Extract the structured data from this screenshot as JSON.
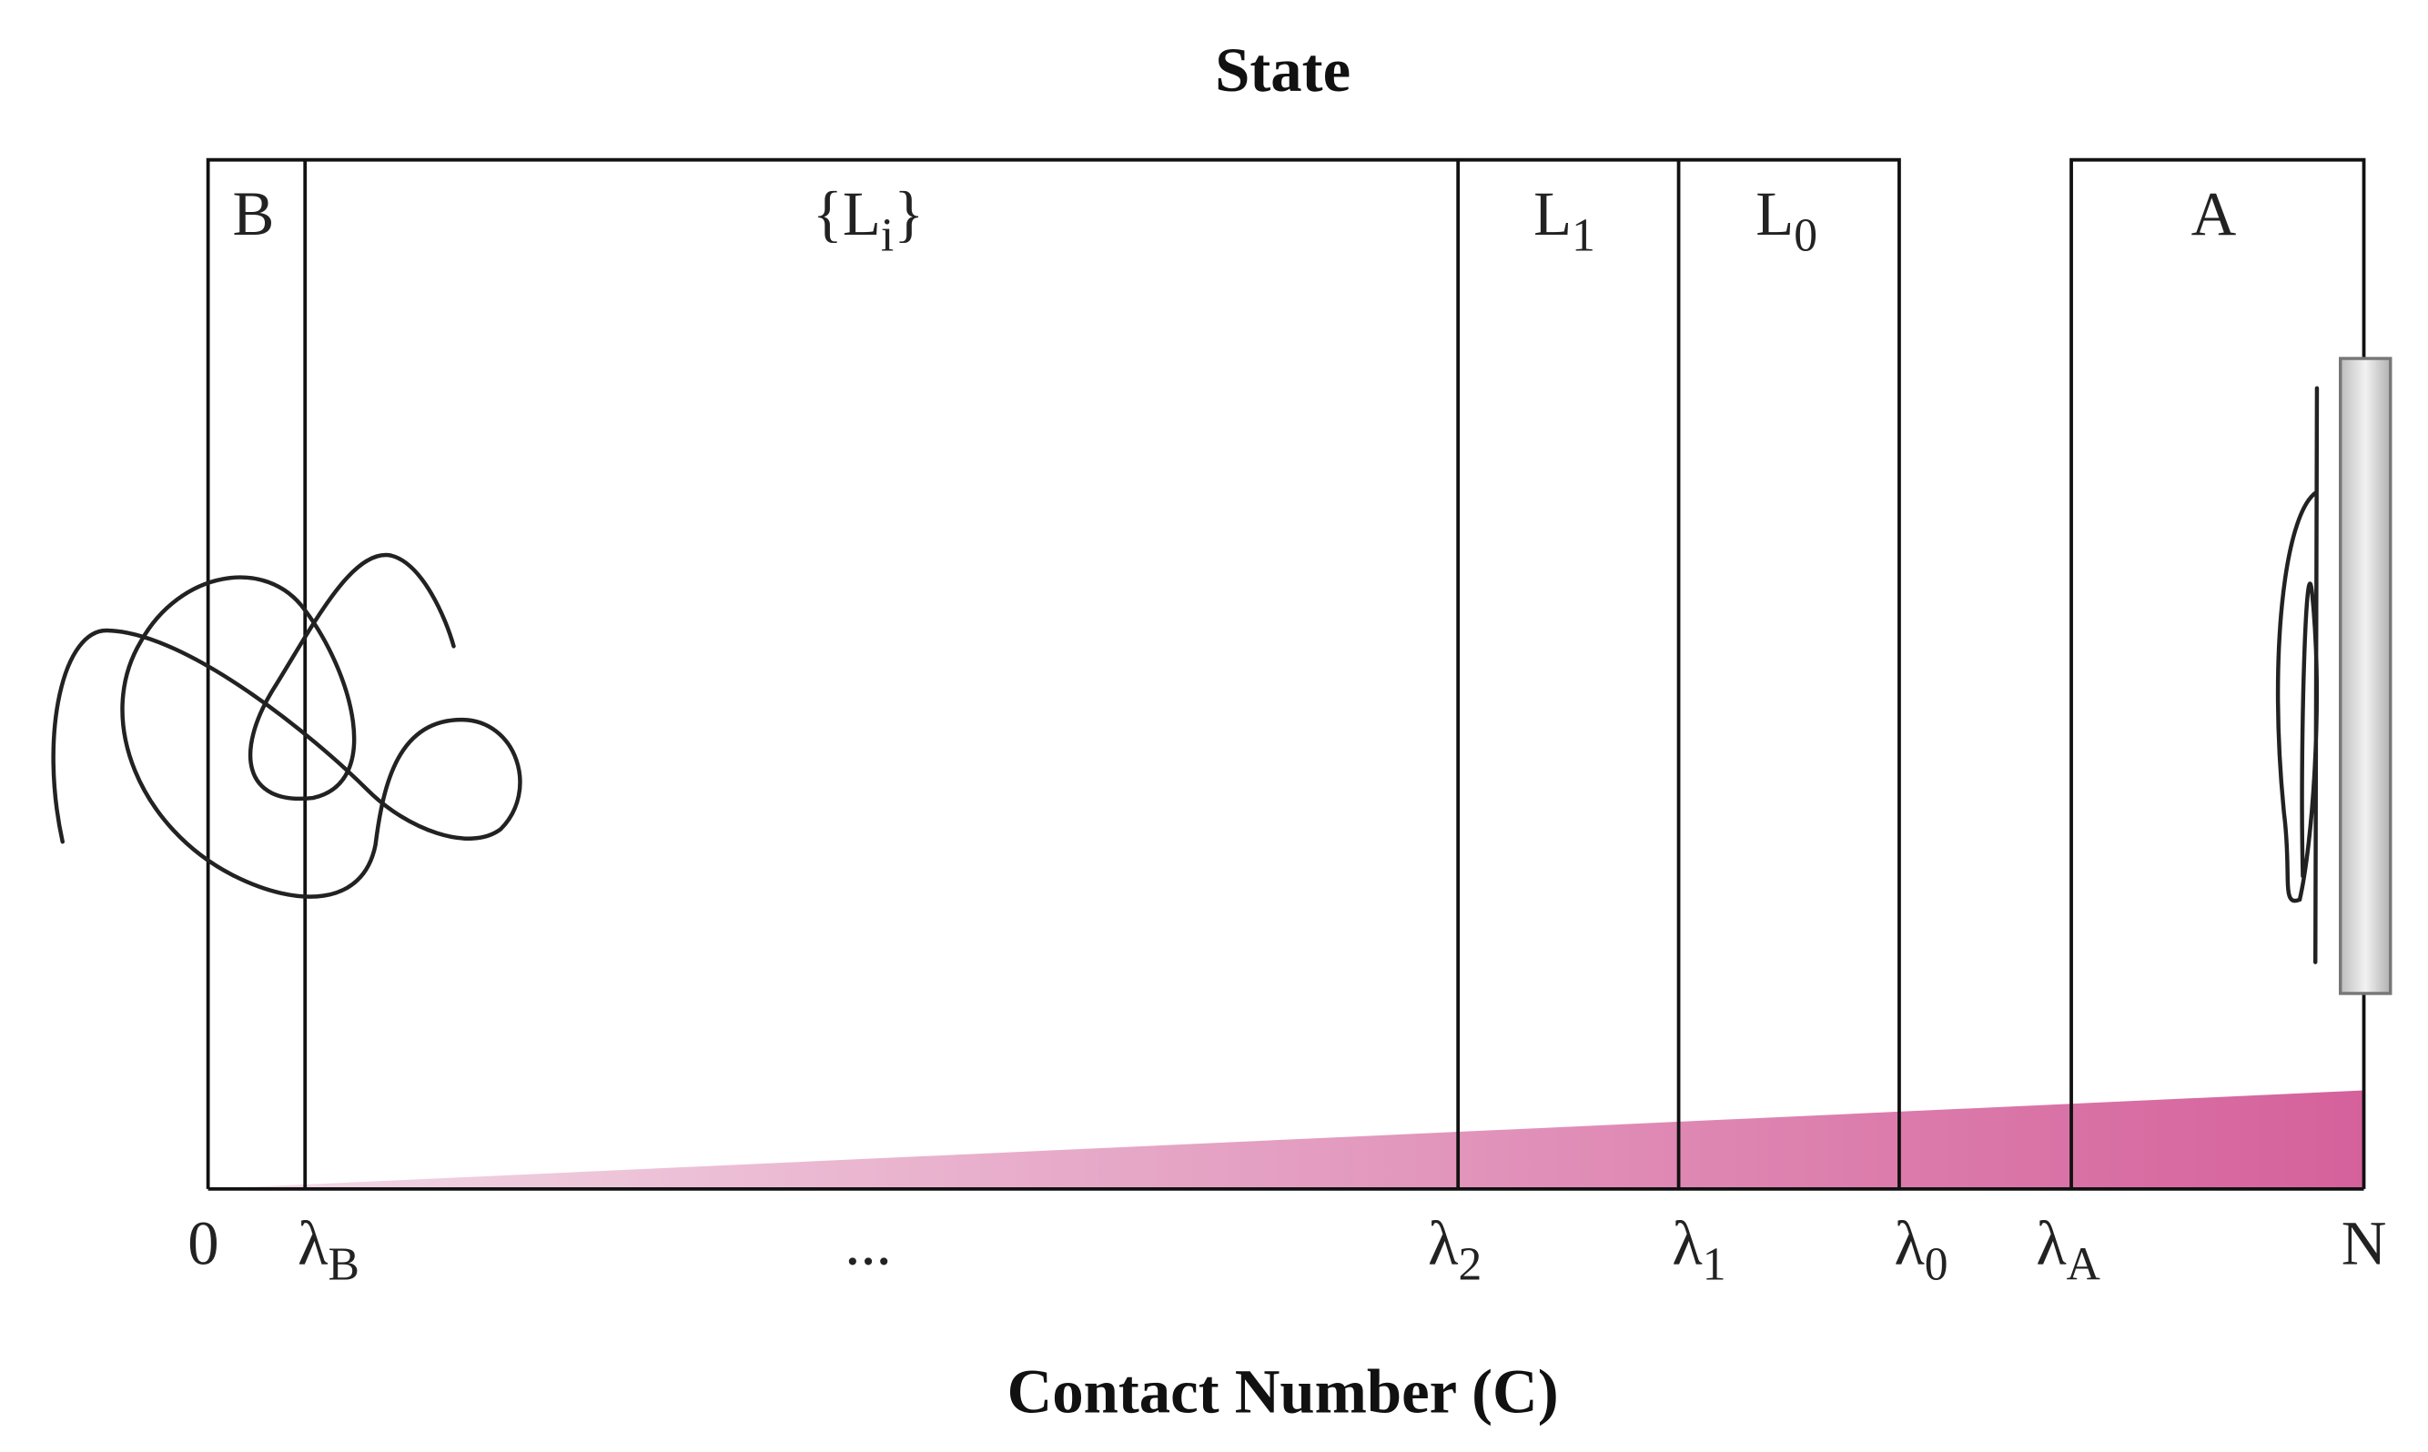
{
  "title": "State",
  "x_axis_label": "Contact Number (C)",
  "regions": [
    {
      "main": "B"
    },
    {
      "main": "{L",
      "sub": "i",
      "tail": "}"
    },
    {
      "main": "L",
      "sub": "1"
    },
    {
      "main": "L",
      "sub": "0"
    },
    {
      "main": "A"
    }
  ],
  "ticks": [
    {
      "main": "0"
    },
    {
      "main": "λ",
      "sub": "B"
    },
    {
      "main": "..."
    },
    {
      "main": "λ",
      "sub": "2"
    },
    {
      "main": "λ",
      "sub": "1"
    },
    {
      "main": "λ",
      "sub": "0"
    },
    {
      "main": "λ",
      "sub": "A"
    },
    {
      "main": "N"
    }
  ]
}
